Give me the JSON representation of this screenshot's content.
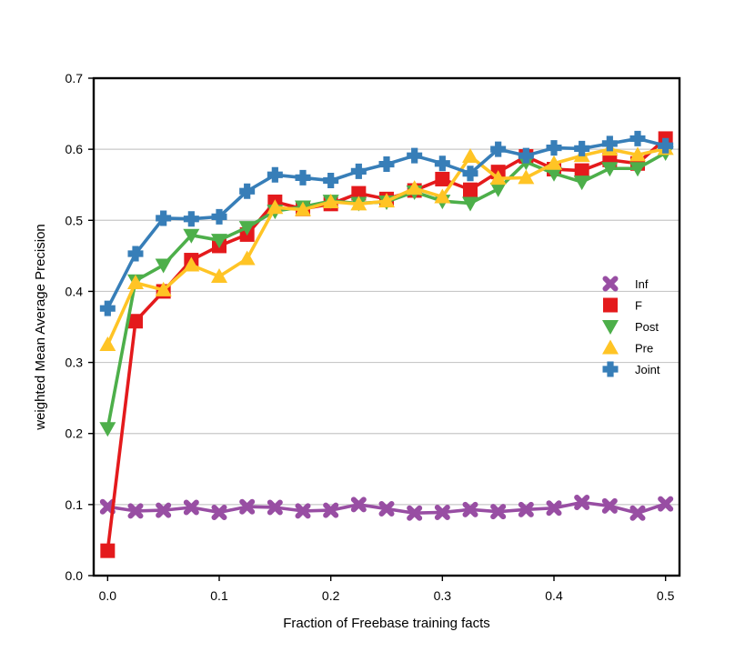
{
  "chart_data": {
    "type": "line",
    "title": "",
    "xlabel": "Fraction of Freebase training facts",
    "ylabel": "weighted Mean Average Precision",
    "xlim": [
      -0.0125,
      0.5125
    ],
    "ylim": [
      0.0,
      0.7
    ],
    "xticks": [
      0.0,
      0.1,
      0.2,
      0.3,
      0.4,
      0.5
    ],
    "xtick_labels": [
      "0.0",
      "0.1",
      "0.2",
      "0.3",
      "0.4",
      "0.5"
    ],
    "yticks": [
      0.0,
      0.1,
      0.2,
      0.3,
      0.4,
      0.5,
      0.6,
      0.7
    ],
    "ytick_labels": [
      "0.0",
      "0.1",
      "0.2",
      "0.3",
      "0.4",
      "0.5",
      "0.6",
      "0.7"
    ],
    "grid": "horizontal",
    "legend_position": "center-right",
    "x": [
      0.0,
      0.025,
      0.05,
      0.075,
      0.1,
      0.125,
      0.15,
      0.175,
      0.2,
      0.225,
      0.25,
      0.275,
      0.3,
      0.325,
      0.35,
      0.375,
      0.4,
      0.425,
      0.45,
      0.475,
      0.5
    ],
    "series": [
      {
        "name": "Inf",
        "color": "#984ea3",
        "marker": "x-cross",
        "values": [
          0.097,
          0.091,
          0.092,
          0.096,
          0.089,
          0.097,
          0.096,
          0.091,
          0.092,
          0.1,
          0.094,
          0.088,
          0.089,
          0.093,
          0.09,
          0.093,
          0.095,
          0.103,
          0.098,
          0.088,
          0.101
        ]
      },
      {
        "name": "F",
        "color": "#e41a1c",
        "marker": "square",
        "values": [
          0.035,
          0.358,
          0.4,
          0.444,
          0.464,
          0.48,
          0.526,
          0.516,
          0.523,
          0.538,
          0.53,
          0.542,
          0.558,
          0.543,
          0.568,
          0.59,
          0.572,
          0.57,
          0.585,
          0.58,
          0.615
        ]
      },
      {
        "name": "Post",
        "color": "#4daf4a",
        "marker": "triangle-down",
        "values": [
          0.207,
          0.415,
          0.437,
          0.479,
          0.472,
          0.49,
          0.513,
          0.519,
          0.527,
          0.524,
          0.526,
          0.54,
          0.527,
          0.524,
          0.544,
          0.582,
          0.566,
          0.554,
          0.573,
          0.573,
          0.595
        ]
      },
      {
        "name": "Pre",
        "color": "#ffc425",
        "marker": "triangle-up",
        "values": [
          0.325,
          0.412,
          0.402,
          0.437,
          0.421,
          0.446,
          0.518,
          0.515,
          0.526,
          0.523,
          0.527,
          0.545,
          0.533,
          0.59,
          0.559,
          0.56,
          0.58,
          0.591,
          0.6,
          0.592,
          0.601
        ]
      },
      {
        "name": "Joint",
        "color": "#377eb8",
        "marker": "plus",
        "values": [
          0.376,
          0.453,
          0.503,
          0.502,
          0.505,
          0.541,
          0.564,
          0.56,
          0.556,
          0.569,
          0.579,
          0.591,
          0.58,
          0.566,
          0.6,
          0.591,
          0.602,
          0.601,
          0.608,
          0.615,
          0.605
        ]
      }
    ]
  }
}
